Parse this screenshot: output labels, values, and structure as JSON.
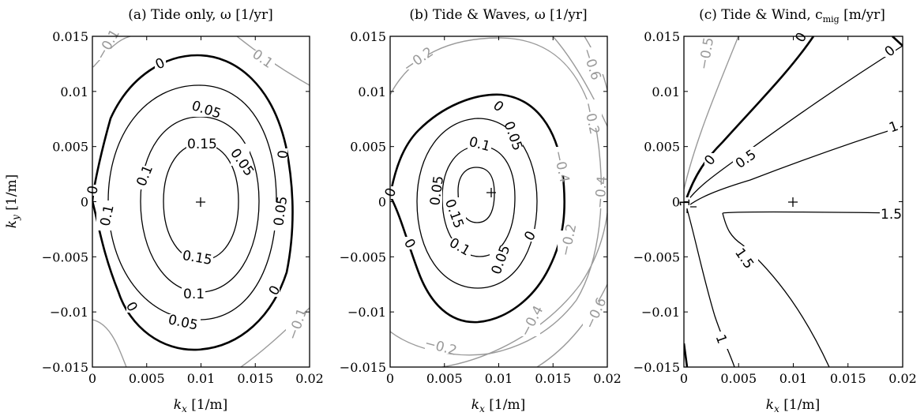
{
  "chart_data": [
    {
      "type": "contour",
      "panel": "a",
      "title": "(a) Tide only, ω [1/yr]",
      "xlabel": "k_x [1/m]",
      "ylabel": "k_y [1/m]",
      "xlim": [
        0,
        0.02
      ],
      "ylim": [
        -0.015,
        0.015
      ],
      "x_ticks": [
        "0",
        "0.005",
        "0.01",
        "0.015",
        "0.02"
      ],
      "y_ticks": [
        "0.015",
        "0.01",
        "0.005",
        "0",
        "−0.005",
        "−0.01",
        "−0.015"
      ],
      "center_marker": [
        0.01,
        0
      ],
      "contour_levels": [
        -0.1,
        0,
        0.05,
        0.1,
        0.15
      ],
      "contour_labels": [
        {
          "text": "−0.1",
          "color": "gray"
        },
        {
          "text": "0.1",
          "color": "gray"
        },
        {
          "text": "0",
          "color": "black"
        },
        {
          "text": "0.05",
          "color": "black"
        },
        {
          "text": "0.15",
          "color": "black"
        },
        {
          "text": "0.1",
          "color": "black"
        },
        {
          "text": "0.05",
          "color": "black"
        },
        {
          "text": "0.1",
          "color": "black"
        },
        {
          "text": "0.05",
          "color": "black"
        },
        {
          "text": "0",
          "color": "black"
        },
        {
          "text": "0",
          "color": "black"
        },
        {
          "text": "0.15",
          "color": "black"
        },
        {
          "text": "0.1",
          "color": "black"
        },
        {
          "text": "0.05",
          "color": "black"
        },
        {
          "text": "0",
          "color": "black"
        },
        {
          "text": "0",
          "color": "black"
        },
        {
          "text": "−0.1",
          "color": "gray"
        }
      ]
    },
    {
      "type": "contour",
      "panel": "b",
      "title": "(b) Tide & Waves, ω [1/yr]",
      "xlabel": "k_x [1/m]",
      "xlim": [
        0,
        0.02
      ],
      "ylim": [
        -0.015,
        0.015
      ],
      "x_ticks": [
        "0",
        "0.005",
        "0.01",
        "0.015",
        "0.02"
      ],
      "y_ticks": [
        "0.015",
        "0.01",
        "0.005",
        "0",
        "−0.005",
        "−0.01",
        "−0.015"
      ],
      "center_marker": [
        0.0075,
        0.0005
      ],
      "contour_levels": [
        -0.6,
        -0.4,
        -0.2,
        0,
        0.05,
        0.1,
        0.15
      ],
      "contour_labels": [
        {
          "text": "−0.2",
          "color": "gray"
        },
        {
          "text": "−0.4",
          "color": "gray"
        },
        {
          "text": "−0.6",
          "color": "gray"
        },
        {
          "text": "−0.2",
          "color": "gray"
        },
        {
          "text": "0",
          "color": "black"
        },
        {
          "text": "0.05",
          "color": "black"
        },
        {
          "text": "0.1",
          "color": "black"
        },
        {
          "text": "0.05",
          "color": "black"
        },
        {
          "text": "0",
          "color": "black"
        },
        {
          "text": "0.15",
          "color": "black"
        },
        {
          "text": "−0.4",
          "color": "gray"
        },
        {
          "text": "−0.2",
          "color": "gray"
        },
        {
          "text": "0",
          "color": "black"
        },
        {
          "text": "0.1",
          "color": "black"
        },
        {
          "text": "0.05",
          "color": "black"
        },
        {
          "text": "0",
          "color": "black"
        },
        {
          "text": "−0.4",
          "color": "gray"
        },
        {
          "text": "−0.6",
          "color": "gray"
        },
        {
          "text": "−0.2",
          "color": "gray"
        }
      ]
    },
    {
      "type": "contour",
      "panel": "c",
      "title": "(c) Tide & Wind, c",
      "title_subscript": "mig",
      "title_suffix": " [m/yr]",
      "xlabel": "k_x [1/m]",
      "xlim": [
        0,
        0.02
      ],
      "ylim": [
        -0.015,
        0.015
      ],
      "x_ticks": [
        "0",
        "0.005",
        "0.01",
        "0.015",
        "0.02"
      ],
      "y_ticks": [
        "0.015",
        "0.01",
        "0.005",
        "0",
        "−0.005",
        "−0.01",
        "−0.015"
      ],
      "center_marker": [
        0.01,
        0
      ],
      "contour_levels": [
        -0.5,
        0,
        0.5,
        1,
        1.5
      ],
      "contour_labels": [
        {
          "text": "−0.5",
          "color": "gray"
        },
        {
          "text": "0",
          "color": "black"
        },
        {
          "text": "0",
          "color": "black"
        },
        {
          "text": "0",
          "color": "black"
        },
        {
          "text": "0.5",
          "color": "black"
        },
        {
          "text": "1",
          "color": "black"
        },
        {
          "text": "1.5",
          "color": "black"
        },
        {
          "text": "1.5",
          "color": "black"
        },
        {
          "text": "1",
          "color": "black"
        },
        {
          "text": "1",
          "color": "black"
        }
      ]
    }
  ]
}
